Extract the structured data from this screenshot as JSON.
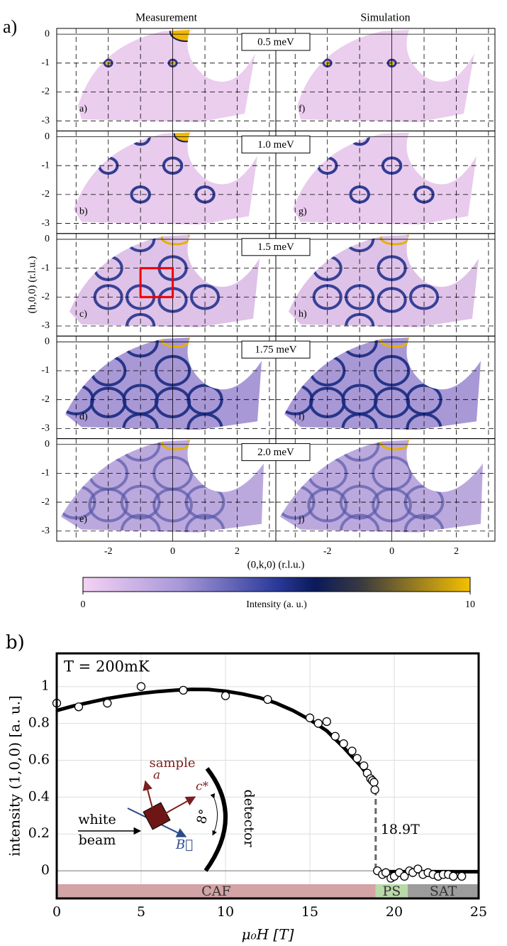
{
  "chart_data": [
    {
      "type": "heatmap-grid",
      "panel_letter": "a)",
      "column_titles": [
        "Measurement",
        "Simulation"
      ],
      "energies": [
        "0.5 meV",
        "1.0 meV",
        "1.5 meV",
        "1.75 meV",
        "2.0 meV"
      ],
      "panel_labels": [
        "a)",
        "b)",
        "c)",
        "d)",
        "e)",
        "f)",
        "g)",
        "h)",
        "i)",
        "j)"
      ],
      "xlabel": "(0,k,0) (r.l.u.)",
      "ylabel": "(h,0,0) (r.l.u.)",
      "xlim": [
        -3.6,
        3.2
      ],
      "ylim": [
        -3.35,
        0.2
      ],
      "xticks": [
        -2,
        0,
        2
      ],
      "xminor": [
        -3,
        -1,
        1,
        3
      ],
      "yticks": [
        0,
        -1,
        -2,
        -3
      ],
      "colorbar": {
        "label": "Intensity (a. u.)",
        "lim": [
          0,
          10
        ],
        "ticks": [
          0,
          10
        ]
      }
    },
    {
      "type": "scatter",
      "panel_letter": "b)",
      "annotation": "T = 200mK",
      "xlabel": "μ₀H  [T]",
      "ylabel": "intensity (1,0,0) [a. u.]",
      "xlim": [
        0,
        25
      ],
      "ylim": [
        -0.15,
        1.18
      ],
      "xticks": [
        0,
        5,
        10,
        15,
        20,
        25
      ],
      "yticks": [
        0,
        0.2,
        0.4,
        0.6,
        0.8,
        1
      ],
      "grid": true,
      "x": [
        0,
        1.3,
        3,
        5,
        7.5,
        10,
        12.5,
        15,
        15.5,
        16,
        16.5,
        17,
        17.5,
        17.8,
        18.2,
        18.4,
        18.6,
        18.7,
        18.8,
        18.85,
        19,
        19.3,
        19.5,
        19.8,
        20,
        20.3,
        20.6,
        20.9,
        21.1,
        21.4,
        21.7,
        22,
        22.3,
        22.6,
        22.9,
        23.2,
        23.5,
        24
      ],
      "y": [
        0.91,
        0.89,
        0.91,
        1.0,
        0.98,
        0.95,
        0.93,
        0.83,
        0.8,
        0.81,
        0.73,
        0.69,
        0.65,
        0.61,
        0.57,
        0.53,
        0.5,
        0.49,
        0.48,
        0.44,
        0.0,
        -0.02,
        -0.01,
        -0.04,
        -0.03,
        -0.01,
        -0.03,
        0.0,
        -0.01,
        0.01,
        -0.02,
        -0.01,
        -0.02,
        -0.03,
        -0.02,
        -0.02,
        -0.03,
        -0.03
      ],
      "fit": {
        "x": [
          0,
          1,
          2,
          3,
          4,
          5,
          6,
          7,
          8,
          9,
          10,
          11,
          12,
          13,
          14,
          15,
          16,
          17,
          17.5,
          18,
          18.5,
          18.9,
          19,
          19,
          25
        ],
        "y": [
          0.87,
          0.895,
          0.915,
          0.935,
          0.95,
          0.963,
          0.973,
          0.98,
          0.985,
          0.984,
          0.975,
          0.96,
          0.94,
          0.91,
          0.87,
          0.82,
          0.76,
          0.67,
          0.62,
          0.57,
          0.51,
          0.46,
          null,
          -0.005,
          -0.005
        ]
      },
      "transition": {
        "x": 18.9,
        "label": "18.9T"
      },
      "bands": [
        {
          "label": "CAF",
          "from": 0,
          "to": 18.9,
          "color": "#d4a3a5"
        },
        {
          "label": "PS",
          "from": 18.9,
          "to": 20.8,
          "color": "#b9d9a9"
        },
        {
          "label": "SAT",
          "from": 20.8,
          "to": 25,
          "color": "#9c9c9c"
        }
      ],
      "inset": {
        "white": "white",
        "beam": "beam",
        "sample": "sample",
        "a": "a",
        "c": "c*",
        "b": "B⃗",
        "angle": "8°",
        "detector": "detector"
      }
    }
  ]
}
